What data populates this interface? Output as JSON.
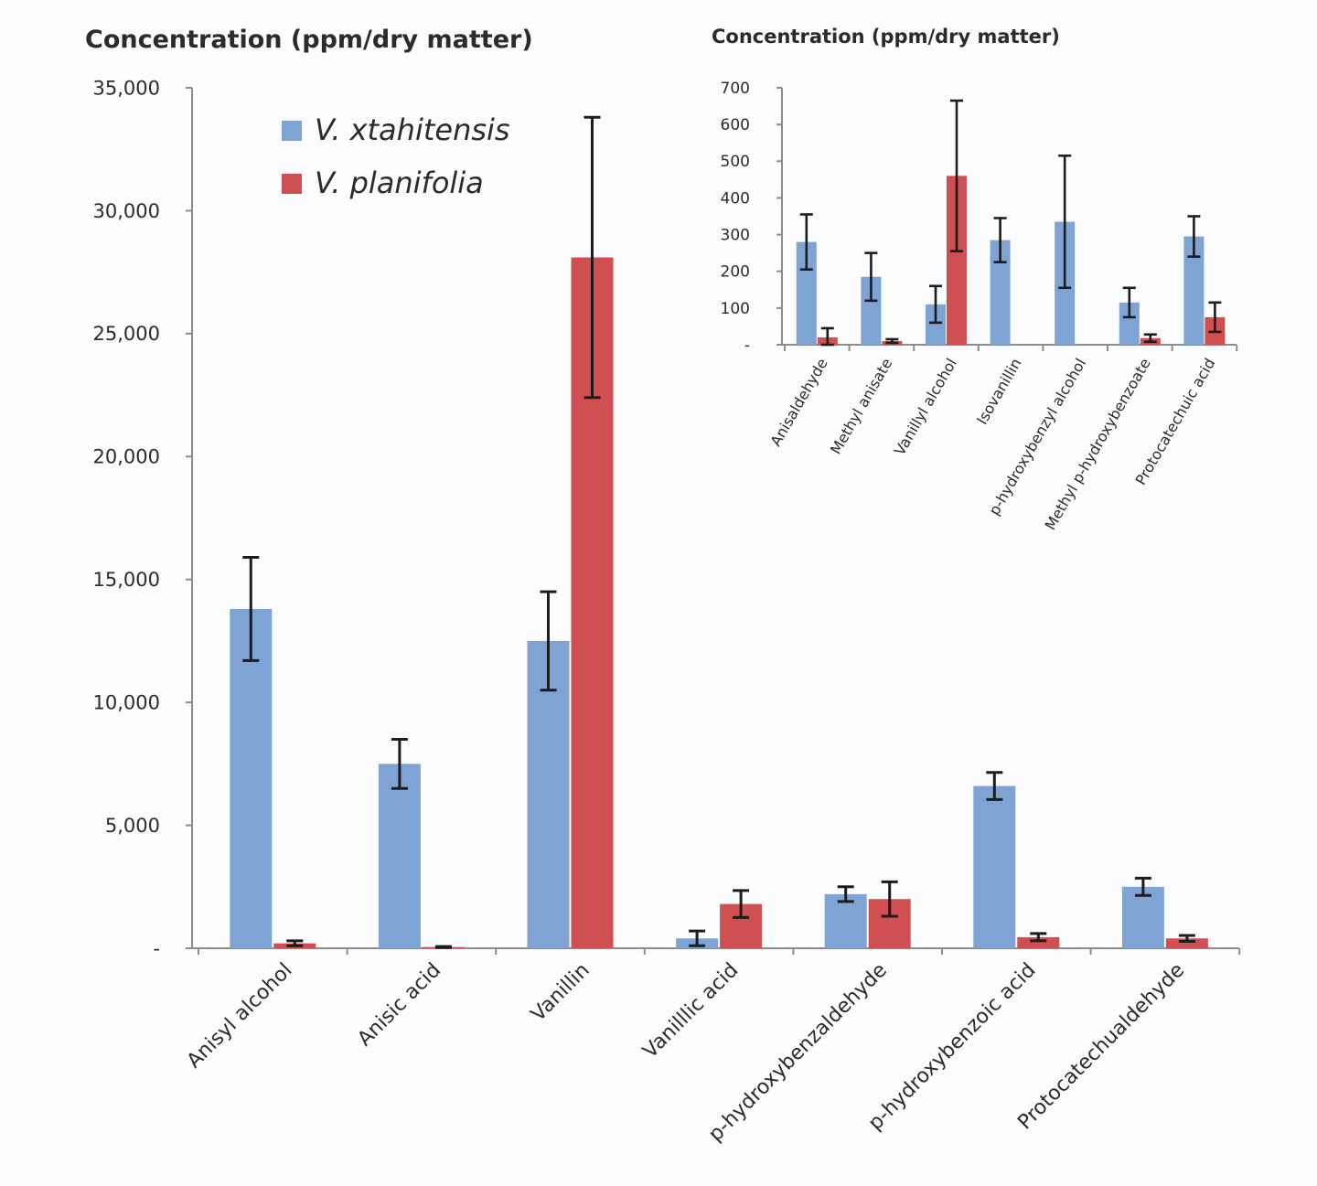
{
  "colors": {
    "series_1": "#7fa4d3",
    "series_2": "#cf4f52",
    "error_bar": "#1c1c1c",
    "axis": "#8c8c8c"
  },
  "chart_data": [
    {
      "type": "bar",
      "ylabel": "Concentration (ppm/dry matter)",
      "ylim": [
        0,
        35000
      ],
      "yticks": [
        0,
        5000,
        10000,
        15000,
        20000,
        25000,
        30000,
        35000
      ],
      "ytick_labels": [
        "-",
        "5,000",
        "10,000",
        "15,000",
        "20,000",
        "25,000",
        "30,000",
        "35,000"
      ],
      "categories": [
        "Anisyl alcohol",
        "Anisic acid",
        "Vanillin",
        "Vanilllic acid",
        "p-hydroxybenzaldehyde",
        "p-hydroxybenzoic acid",
        "Protocatechualdehyde"
      ],
      "legend": {
        "placement": "top-left"
      },
      "series": [
        {
          "name": "V. xtahitensis",
          "values": [
            13800,
            7500,
            12500,
            400,
            2200,
            6600,
            2500
          ],
          "errors": [
            2100,
            1000,
            2000,
            300,
            300,
            550,
            350
          ]
        },
        {
          "name": "V. planifolia",
          "values": [
            200,
            50,
            28100,
            1800,
            2000,
            450,
            400
          ],
          "errors": [
            100,
            20,
            5700,
            550,
            700,
            150,
            120
          ]
        }
      ],
      "grid": false
    },
    {
      "type": "bar",
      "ylabel": "Concentration (ppm/dry matter)",
      "ylim": [
        0,
        700
      ],
      "yticks": [
        0,
        100,
        200,
        300,
        400,
        500,
        600,
        700
      ],
      "ytick_labels": [
        "-",
        "100",
        "200",
        "300",
        "400",
        "500",
        "600",
        "700"
      ],
      "categories": [
        "Anisaldehyde",
        "Methyl anisate",
        "Vanillyl alcohol",
        "Isovanillin",
        "p-hydroxybenzyl alcohol",
        "Methyl p-hydroxybenzoate",
        "Protocatechuic acid"
      ],
      "series": [
        {
          "name": "V. xtahitensis",
          "values": [
            280,
            185,
            110,
            285,
            335,
            115,
            295
          ],
          "errors": [
            75,
            65,
            50,
            60,
            180,
            40,
            55
          ]
        },
        {
          "name": "V. planifolia",
          "values": [
            20,
            10,
            460,
            0,
            0,
            18,
            75
          ],
          "errors": [
            25,
            5,
            205,
            0,
            0,
            10,
            40
          ]
        }
      ],
      "grid": false
    }
  ]
}
